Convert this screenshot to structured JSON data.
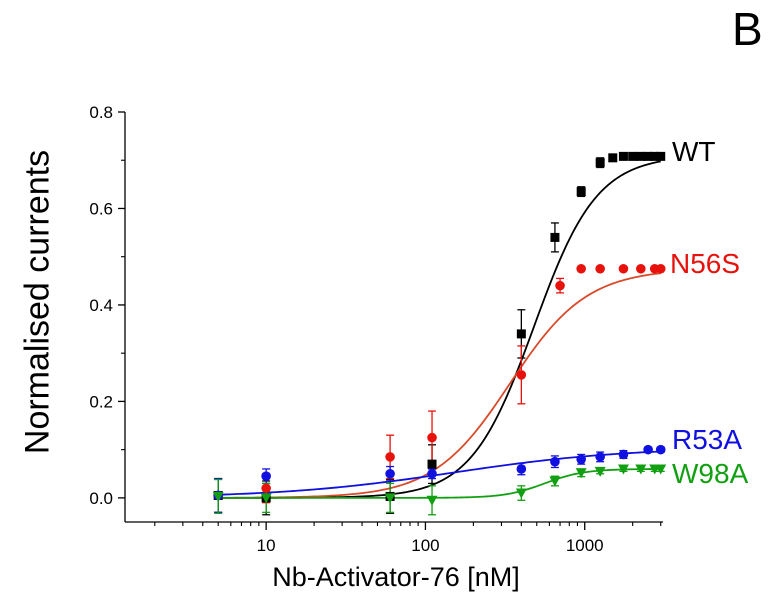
{
  "panel_label": "B",
  "chart_data": {
    "type": "scatter",
    "xlabel": "Nb-Activator-76 [nM]",
    "ylabel": "Normalised  currents",
    "xscale": "log",
    "xlim": [
      1.3,
      3100
    ],
    "ylim": [
      -0.05,
      0.8
    ],
    "xticks": [
      10,
      100,
      1000
    ],
    "xtick_labels": [
      "10",
      "100",
      "1000"
    ],
    "yticks": [
      0.0,
      0.2,
      0.4,
      0.6,
      0.8
    ],
    "ytick_labels": [
      "0.0",
      "0.2",
      "0.4",
      "0.6",
      "0.8"
    ],
    "grid": false,
    "legend": "series labels at right end of curves",
    "series": [
      {
        "name": "WT",
        "color": "#000000",
        "marker": "square",
        "x": [
          5,
          10,
          60,
          110,
          400,
          650,
          950,
          1250,
          1500,
          1750,
          2000,
          2250,
          2500,
          2750,
          3000
        ],
        "y": [
          0.005,
          0.0,
          0.003,
          0.07,
          0.34,
          0.54,
          0.635,
          0.695,
          0.705,
          0.708,
          0.708,
          0.708,
          0.708,
          0.708,
          0.708
        ],
        "err": [
          0.035,
          0.035,
          0.035,
          0.04,
          0.05,
          0.03,
          0.01,
          0.01,
          0.005,
          0.003,
          0.003,
          0.003,
          0.003,
          0.003,
          0.003
        ],
        "fit": {
          "bottom": 0.0,
          "top": 0.71,
          "ec50": 480,
          "hill": 2.2
        },
        "fit_color": "#000000"
      },
      {
        "name": "N56S",
        "color": "#e8120c",
        "marker": "circle",
        "x": [
          5,
          10,
          60,
          110,
          400,
          700,
          950,
          1250,
          1750,
          2250,
          2750,
          3000
        ],
        "y": [
          0.005,
          0.02,
          0.085,
          0.125,
          0.255,
          0.44,
          0.475,
          0.475,
          0.475,
          0.475,
          0.475,
          0.475
        ],
        "err": [
          0.035,
          0.03,
          0.045,
          0.055,
          0.06,
          0.015,
          0.0,
          0.0,
          0.0,
          0.0,
          0.0,
          0.0
        ],
        "fit": {
          "bottom": 0.0,
          "top": 0.475,
          "ec50": 340,
          "hill": 1.8
        },
        "fit_color": "#d84a2a"
      },
      {
        "name": "R53A",
        "color": "#1010e0",
        "marker": "circle",
        "x": [
          5,
          10,
          60,
          110,
          400,
          650,
          950,
          1250,
          1750,
          2500,
          3000
        ],
        "y": [
          0.005,
          0.045,
          0.05,
          0.05,
          0.06,
          0.075,
          0.08,
          0.085,
          0.09,
          0.1,
          0.1
        ],
        "err": [
          0.035,
          0.015,
          0.015,
          0.01,
          0.012,
          0.012,
          0.01,
          0.01,
          0.008,
          0.005,
          0.005
        ],
        "fit": {
          "bottom": 0.0,
          "top": 0.105,
          "ec50": 150,
          "hill": 0.8
        },
        "fit_color": "#1010e0"
      },
      {
        "name": "W98A",
        "color": "#12a012",
        "marker": "triangle-down",
        "x": [
          5,
          10,
          60,
          110,
          400,
          650,
          950,
          1250,
          1750,
          2250,
          2750,
          3000
        ],
        "y": [
          0.003,
          0.0,
          0.0,
          -0.005,
          0.01,
          0.035,
          0.052,
          0.055,
          0.06,
          0.06,
          0.06,
          0.06
        ],
        "err": [
          0.035,
          0.03,
          0.03,
          0.03,
          0.015,
          0.01,
          0.008,
          0.005,
          0.005,
          0.005,
          0.005,
          0.005
        ],
        "fit": {
          "bottom": 0.0,
          "top": 0.06,
          "ec50": 560,
          "hill": 3.5
        },
        "fit_color": "#12a012"
      }
    ]
  }
}
